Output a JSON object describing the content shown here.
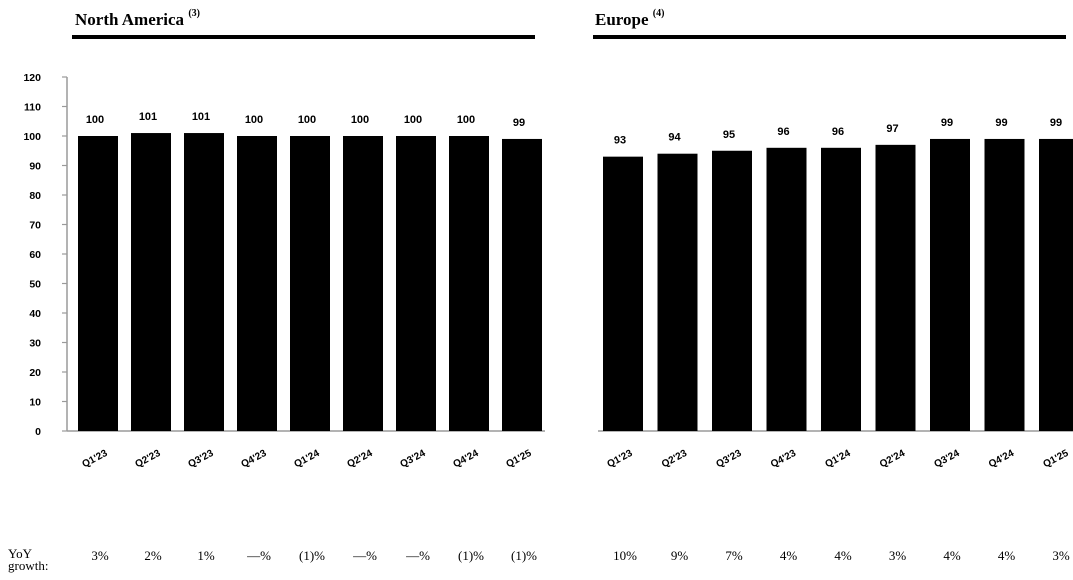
{
  "yoy_label": "YoY growth:",
  "chart_data": [
    {
      "type": "bar",
      "title": "North America",
      "title_note": "(3)",
      "categories": [
        "Q1'23",
        "Q2'23",
        "Q3'23",
        "Q4'23",
        "Q1'24",
        "Q2'24",
        "Q3'24",
        "Q4'24",
        "Q1'25"
      ],
      "values": [
        100,
        101,
        101,
        100,
        100,
        100,
        100,
        100,
        99
      ],
      "data_labels": [
        "100",
        "101",
        "101",
        "100",
        "100",
        "100",
        "100",
        "100",
        "99"
      ],
      "yoy_growth": [
        "3%",
        "2%",
        "1%",
        "—%",
        "(1)%",
        "—%",
        "—%",
        "(1)%",
        "(1)%"
      ],
      "ylim": [
        0,
        120
      ],
      "yticks": [
        0,
        10,
        20,
        30,
        40,
        50,
        60,
        70,
        80,
        90,
        100,
        110,
        120
      ],
      "xlabel": "",
      "ylabel": "",
      "bar_color": "#000000",
      "axis_color": "#9a9a9a",
      "grid": false
    },
    {
      "type": "bar",
      "title": "Europe",
      "title_note": "(4)",
      "categories": [
        "Q1'23",
        "Q2'23",
        "Q3'23",
        "Q4'23",
        "Q1'24",
        "Q2'24",
        "Q3'24",
        "Q4'24",
        "Q1'25"
      ],
      "values": [
        93,
        94,
        95,
        96,
        96,
        97,
        99,
        99,
        99
      ],
      "data_labels": [
        "93",
        "94",
        "95",
        "96",
        "96",
        "97",
        "99",
        "99",
        "99"
      ],
      "yoy_growth": [
        "10%",
        "9%",
        "7%",
        "4%",
        "4%",
        "3%",
        "4%",
        "4%",
        "3%"
      ],
      "ylim": [
        0,
        120
      ],
      "xlabel": "",
      "ylabel": "",
      "bar_color": "#000000",
      "axis_color": "#9a9a9a",
      "grid": false
    }
  ]
}
